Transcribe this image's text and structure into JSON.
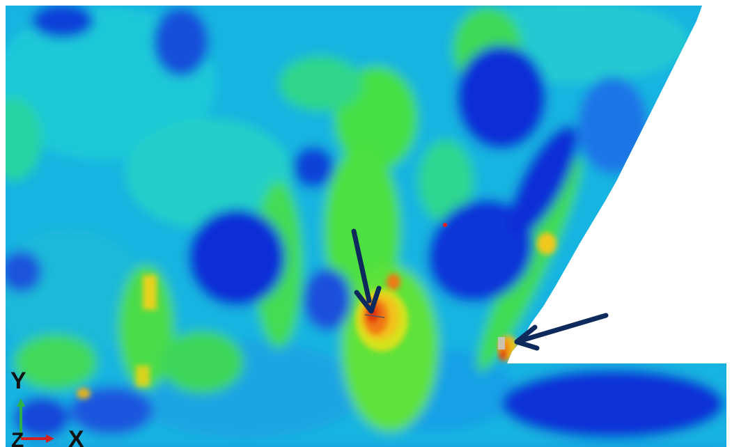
{
  "figure": {
    "colors": {
      "background": "#ffffff",
      "deep_blue": "#0a2fd6",
      "blue": "#1f6fe8",
      "cyan": "#16c7dc",
      "cyan_green": "#25d9a6",
      "green": "#3fe24a",
      "yellow_green": "#b6e81c",
      "yellow": "#f1d81a",
      "orange": "#f28a12",
      "red": "#e02a10",
      "arrow": "#0d2a5c",
      "grain_edge": "#d8d8d8"
    },
    "annotations": {
      "arrows": [
        "arrow-upper-crack",
        "arrow-notch-crack"
      ]
    },
    "triad": {
      "y_label": "Y",
      "z_label": "Z",
      "x_label": "X",
      "colors": {
        "y": "#29b34a",
        "x": "#d42020",
        "z": "#2b4bc0"
      }
    }
  }
}
